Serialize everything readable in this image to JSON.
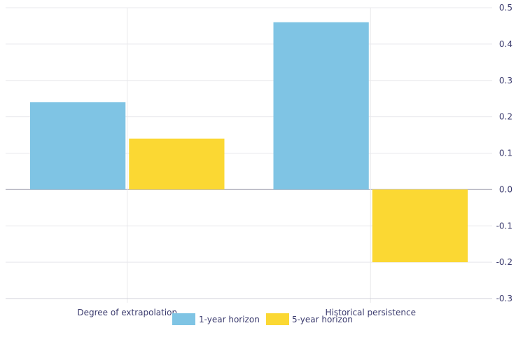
{
  "chart_data": {
    "type": "bar",
    "categories": [
      "Degree of extrapolation",
      "Historical persistence"
    ],
    "series": [
      {
        "name": "1-year horizon",
        "values": [
          0.24,
          0.46
        ],
        "color": "#7fc4e4"
      },
      {
        "name": "5-year horizon",
        "values": [
          0.14,
          -0.2
        ],
        "color": "#fbd833"
      }
    ],
    "y_ticks": [
      "0.5",
      "0.4",
      "0.3",
      "0.2",
      "0.1",
      "0.0",
      "-0.1",
      "-0.2",
      "-0.3"
    ],
    "ylim": [
      -0.3,
      0.5
    ],
    "y_axis_side": "right",
    "grid": true,
    "legend_position": "bottom-center",
    "title": "",
    "xlabel": "",
    "ylabel": ""
  }
}
